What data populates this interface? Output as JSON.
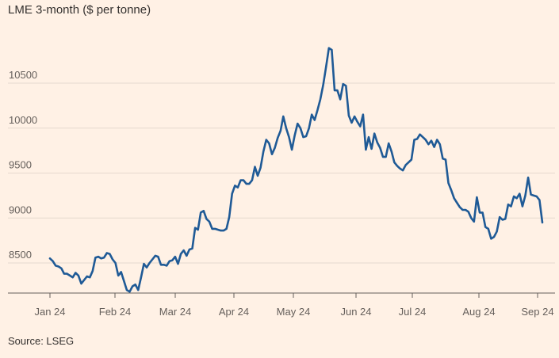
{
  "title": "LME 3-month ($ per tonne)",
  "source": "Source: LSEG",
  "colors": {
    "background": "#FFF1E5",
    "line": "#1F5A96",
    "grid": "#E6D9CE",
    "text": "#33302E",
    "tick": "#66605C"
  },
  "chart_data": {
    "type": "line",
    "title": "LME 3-month ($ per tonne)",
    "xlabel": "",
    "ylabel": "",
    "ylim": [
      8100,
      11000
    ],
    "yticks": [
      8500,
      9000,
      9500,
      10000,
      10500
    ],
    "xticks": [
      "Jan 24",
      "Feb 24",
      "Mar 24",
      "Apr 24",
      "May 24",
      "Jun 24",
      "Jul 24",
      "Aug 24",
      "Sep 24"
    ],
    "x_start": "Jan 24",
    "x_end": "Sep 24",
    "grid": true,
    "legend": "none",
    "series": [
      {
        "name": "LME 3-month",
        "values": [
          8550,
          8520,
          8470,
          8460,
          8440,
          8380,
          8380,
          8360,
          8340,
          8390,
          8360,
          8270,
          8310,
          8350,
          8340,
          8410,
          8560,
          8570,
          8550,
          8560,
          8610,
          8600,
          8540,
          8500,
          8360,
          8400,
          8300,
          8200,
          8180,
          8240,
          8260,
          8200,
          8340,
          8490,
          8450,
          8500,
          8540,
          8580,
          8570,
          8480,
          8480,
          8470,
          8520,
          8530,
          8570,
          8490,
          8600,
          8640,
          8580,
          8650,
          8660,
          8890,
          8870,
          9060,
          9080,
          8990,
          8960,
          8880,
          8880,
          8870,
          8860,
          8860,
          8880,
          9010,
          9270,
          9360,
          9340,
          9420,
          9420,
          9380,
          9380,
          9420,
          9570,
          9470,
          9560,
          9740,
          9870,
          9830,
          9710,
          9780,
          9890,
          9970,
          10130,
          10000,
          9900,
          9760,
          9920,
          10050,
          10000,
          9900,
          9910,
          10000,
          10150,
          10090,
          10200,
          10320,
          10480,
          10680,
          10890,
          10870,
          10420,
          10420,
          10320,
          10490,
          10470,
          10140,
          10060,
          10130,
          10070,
          10020,
          10150,
          9760,
          9900,
          9770,
          9940,
          9840,
          9780,
          9680,
          9680,
          9830,
          9740,
          9620,
          9580,
          9550,
          9530,
          9590,
          9620,
          9650,
          9870,
          9880,
          9930,
          9900,
          9870,
          9820,
          9860,
          9790,
          9870,
          9820,
          9660,
          9650,
          9390,
          9310,
          9220,
          9170,
          9120,
          9090,
          9090,
          9070,
          9000,
          8960,
          9230,
          9060,
          9060,
          8900,
          8880,
          8770,
          8790,
          8850,
          9010,
          8980,
          8990,
          9150,
          9130,
          9240,
          9220,
          9270,
          9130,
          9250,
          9450,
          9260,
          9250,
          9240,
          9200,
          8950
        ]
      }
    ]
  }
}
